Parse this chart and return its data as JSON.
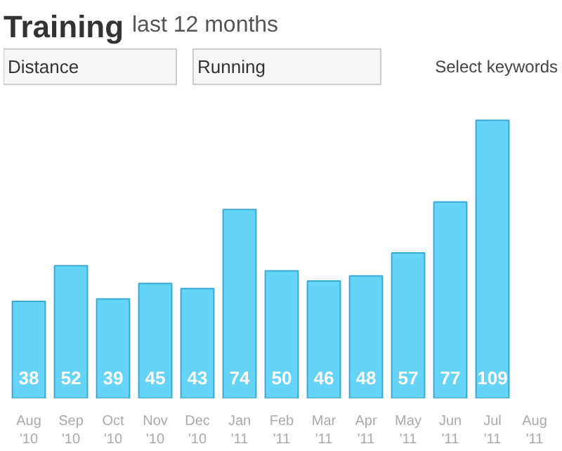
{
  "chart_data": {
    "type": "bar",
    "title": "Training",
    "subtitle": "last 12 months",
    "annotations": [
      "Distance",
      "Running",
      "Select keywords"
    ],
    "categories": [
      "Aug\n'10",
      "Sep\n'10",
      "Oct\n'10",
      "Nov\n'10",
      "Dec\n'10",
      "Jan\n'11",
      "Feb\n'11",
      "Mar\n'11",
      "Apr\n'11",
      "May\n'11",
      "Jun\n'11",
      "Jul\n'11",
      "Aug\n'11"
    ],
    "values": [
      38,
      52,
      39,
      45,
      43,
      74,
      50,
      46,
      48,
      57,
      77,
      109,
      null
    ],
    "color": "#66d4f7",
    "data_labels": true,
    "grid": false
  }
}
